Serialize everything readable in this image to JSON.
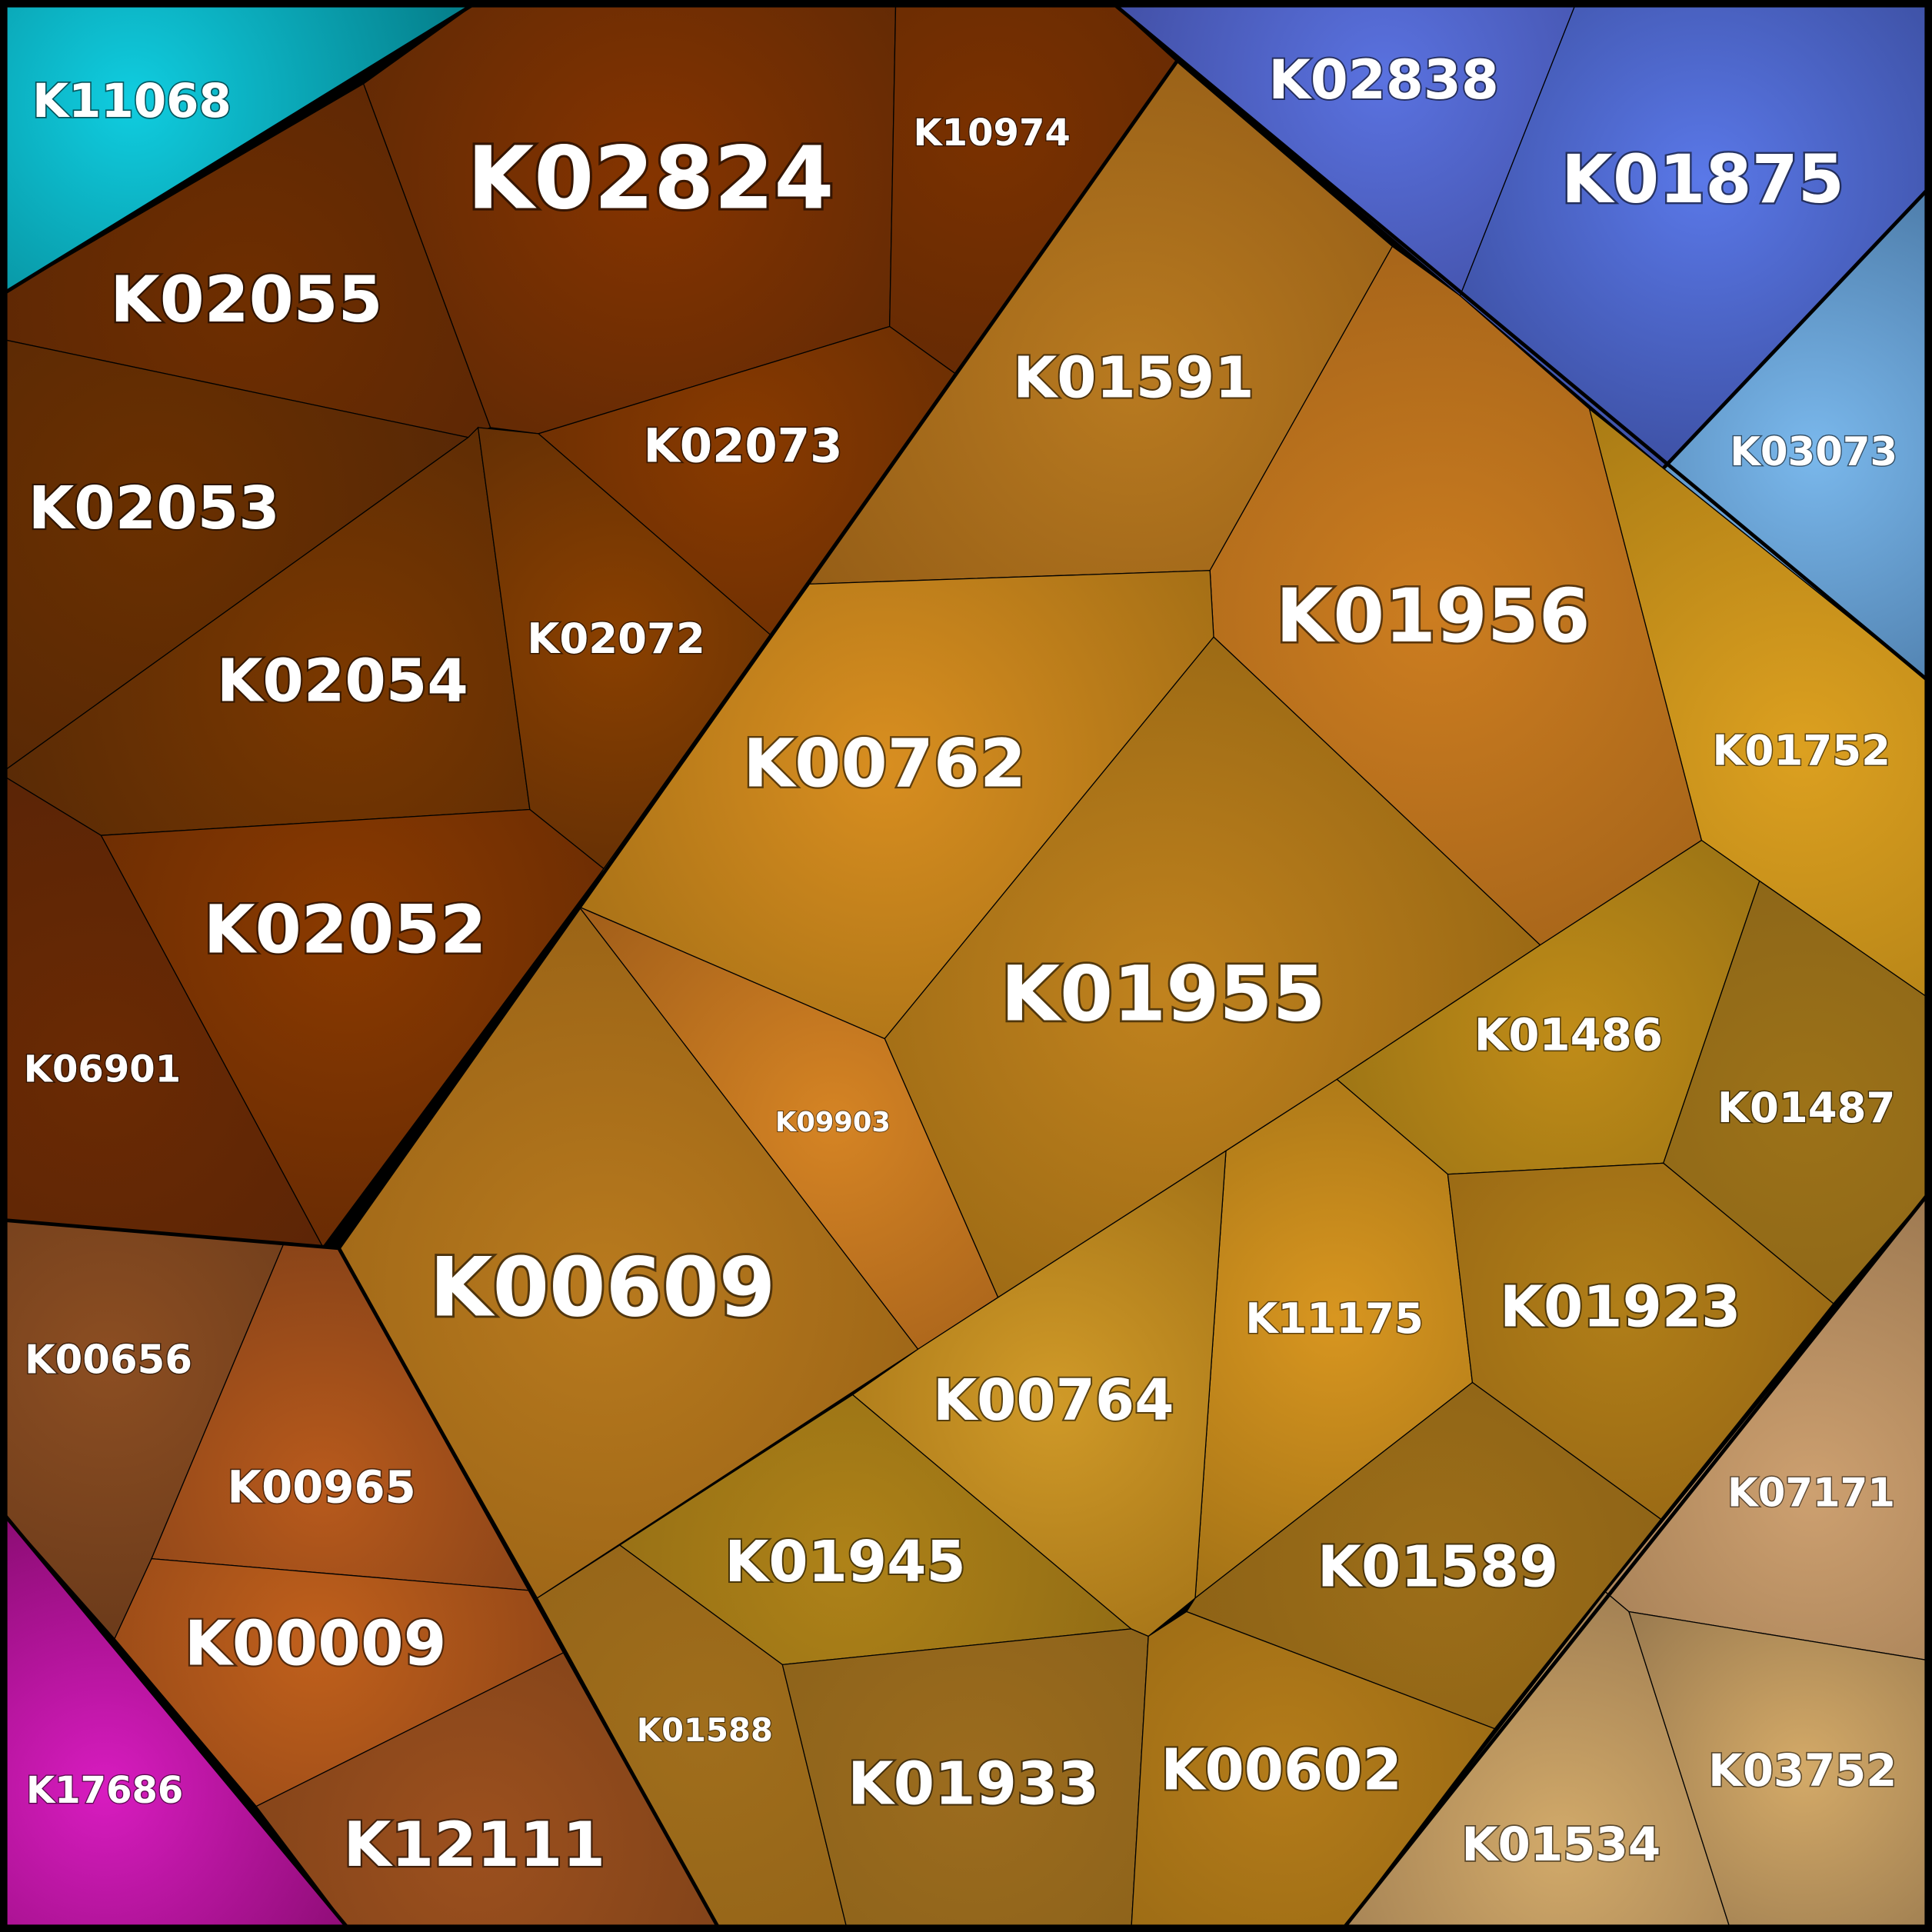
{
  "cells": [
    {
      "label": "K11068",
      "group": "cyan",
      "colors": [
        "#10cde0",
        "#05808c"
      ]
    },
    {
      "label": "K02824",
      "group": "brown",
      "colors": [
        "#853400",
        "#5c2806"
      ]
    },
    {
      "label": "K10974",
      "group": "brown",
      "colors": [
        "#7a3100",
        "#652a04"
      ]
    },
    {
      "label": "K02055",
      "group": "brown",
      "colors": [
        "#6e2e00",
        "#5a2606"
      ]
    },
    {
      "label": "K02073",
      "group": "brown",
      "colors": [
        "#883a00",
        "#662c04"
      ]
    },
    {
      "label": "K02053",
      "group": "brown",
      "colors": [
        "#6a3000",
        "#582806"
      ]
    },
    {
      "label": "K02054",
      "group": "brown",
      "colors": [
        "#7a3800",
        "#582a06"
      ]
    },
    {
      "label": "K02072",
      "group": "brown",
      "colors": [
        "#8a4000",
        "#5c2c06"
      ]
    },
    {
      "label": "K02052",
      "group": "brown",
      "colors": [
        "#8a3a00",
        "#662a04"
      ]
    },
    {
      "label": "K06901",
      "group": "brown",
      "colors": [
        "#6a2a04",
        "#5a2406"
      ]
    },
    {
      "label": "K01591",
      "group": "orange",
      "colors": [
        "#b87a20",
        "#935c16"
      ]
    },
    {
      "label": "K01956",
      "group": "orange",
      "colors": [
        "#cc7d20",
        "#9c5e18"
      ]
    },
    {
      "label": "K00762",
      "group": "orange",
      "colors": [
        "#d88e20",
        "#9c6a14"
      ]
    },
    {
      "label": "K01955",
      "group": "orange",
      "colors": [
        "#c0821e",
        "#936412"
      ]
    },
    {
      "label": "K09903",
      "group": "orange",
      "colors": [
        "#d58424",
        "#a4601a"
      ]
    },
    {
      "label": "K00609",
      "group": "orange",
      "colors": [
        "#b87a1e",
        "#935e14"
      ]
    },
    {
      "label": "K01752",
      "group": "orange",
      "colors": [
        "#dca020",
        "#a87a14"
      ]
    },
    {
      "label": "K01486",
      "group": "orange",
      "colors": [
        "#c08c18",
        "#967014"
      ]
    },
    {
      "label": "K01487",
      "group": "orange",
      "colors": [
        "#9c7218",
        "#8a6418"
      ]
    },
    {
      "label": "K11175",
      "group": "orange",
      "colors": [
        "#d89620",
        "#9a6c14"
      ]
    },
    {
      "label": "K00764",
      "group": "orange",
      "colors": [
        "#d09a28",
        "#9c6c14"
      ]
    },
    {
      "label": "K01923",
      "group": "orange",
      "colors": [
        "#b07e18",
        "#966614"
      ]
    },
    {
      "label": "K01589",
      "group": "orange",
      "colors": [
        "#9c6e18",
        "#8a6016"
      ]
    },
    {
      "label": "K01945",
      "group": "orange",
      "colors": [
        "#ae8218",
        "#8c6814"
      ]
    },
    {
      "label": "K01588",
      "group": "orange",
      "colors": [
        "#a06e1c",
        "#946418"
      ]
    },
    {
      "label": "K01933",
      "group": "orange",
      "colors": [
        "#9c6c1e",
        "#8c621a"
      ]
    },
    {
      "label": "K00602",
      "group": "orange",
      "colors": [
        "#b47c1a",
        "#9a6a14"
      ]
    },
    {
      "label": "K07171",
      "group": "tan",
      "colors": [
        "#cda070",
        "#9c7850"
      ]
    },
    {
      "label": "K01534",
      "group": "tan",
      "colors": [
        "#d2aa6a",
        "#a07e52"
      ]
    },
    {
      "label": "K03752",
      "group": "tan",
      "colors": [
        "#d4aa68",
        "#9c7c50"
      ]
    },
    {
      "label": "K00656",
      "group": "rust",
      "colors": [
        "#8c4e22",
        "#6a3a1a"
      ]
    },
    {
      "label": "K00965",
      "group": "rust",
      "colors": [
        "#b85a1c",
        "#864218"
      ]
    },
    {
      "label": "K00009",
      "group": "rust",
      "colors": [
        "#c0601c",
        "#8a4216"
      ]
    },
    {
      "label": "K12111",
      "group": "rust",
      "colors": [
        "#9c501e",
        "#7c4018"
      ]
    },
    {
      "label": "K17686",
      "group": "magenta",
      "colors": [
        "#d81cc0",
        "#8a0c72"
      ]
    },
    {
      "label": "K02838",
      "group": "blue",
      "colors": [
        "#5a72e0",
        "#3e4a9c"
      ]
    },
    {
      "label": "K01875",
      "group": "blue",
      "colors": [
        "#5a78e8",
        "#3a4c9c"
      ]
    },
    {
      "label": "K03073",
      "group": "blue",
      "colors": [
        "#7ab8ec",
        "#44709c"
      ]
    }
  ]
}
